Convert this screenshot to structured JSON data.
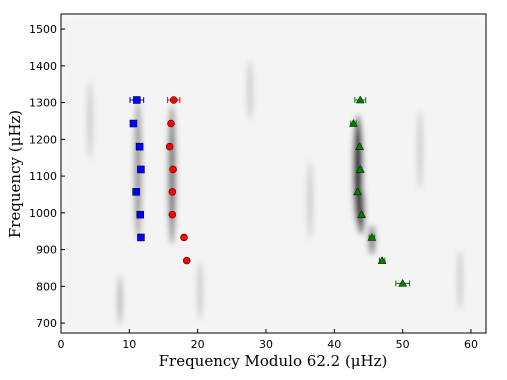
{
  "chart_data": {
    "type": "scatter",
    "x_label": "Frequency Modulo 62.2 (μHz)",
    "y_label": "Frequency (μHz)",
    "xlim": [
      0,
      62.2
    ],
    "ylim": [
      673,
      1541
    ],
    "xticks": [
      0,
      10,
      20,
      30,
      40,
      50,
      60
    ],
    "yticks": [
      700,
      800,
      900,
      1000,
      1100,
      1200,
      1300,
      1400,
      1500
    ],
    "series": [
      {
        "color": "#0000ff",
        "marker": "square",
        "x": [
          11.1,
          10.6,
          11.5,
          11.7,
          11.0,
          11.6,
          11.7
        ],
        "values": [
          1307,
          1243,
          1180,
          1118,
          1057,
          995,
          933
        ],
        "x_errors": [
          1.0,
          0.4,
          0.3,
          0.3,
          0.3,
          0.3,
          0.3
        ]
      },
      {
        "color": "#ff0000",
        "marker": "circle",
        "x": [
          16.5,
          16.1,
          15.9,
          16.4,
          16.3,
          16.3,
          18.0,
          18.4
        ],
        "values": [
          1307,
          1243,
          1180,
          1118,
          1057,
          995,
          933,
          870
        ],
        "x_errors": [
          0.9,
          0.3,
          0.3,
          0.3,
          0.3,
          0.3,
          0.3,
          0.3
        ]
      },
      {
        "color": "#008000",
        "marker": "triangle",
        "x": [
          43.8,
          42.8,
          43.7,
          43.8,
          43.4,
          44.0,
          45.5,
          47.0,
          50.0
        ],
        "values": [
          1307,
          1243,
          1180,
          1118,
          1057,
          995,
          933,
          870,
          808
        ],
        "x_errors": [
          0.8,
          0.4,
          0.2,
          0.2,
          0.2,
          0.2,
          0.4,
          0.4,
          1.0
        ]
      }
    ]
  }
}
